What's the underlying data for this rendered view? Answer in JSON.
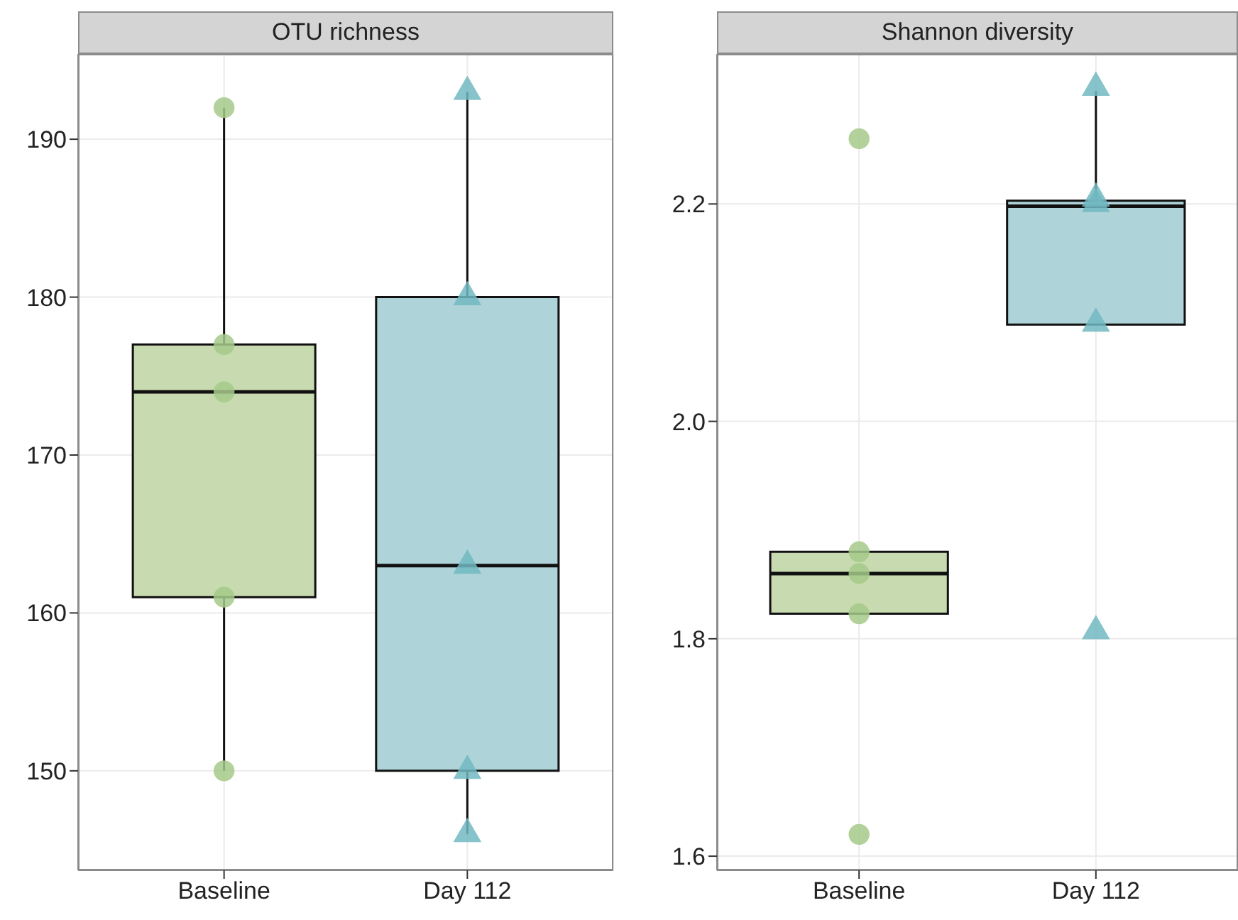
{
  "chart_data": [
    {
      "type": "box",
      "title": "OTU richness",
      "categories": [
        "Baseline",
        "Day 112"
      ],
      "boxes": [
        {
          "low": 150,
          "q1": 161,
          "median": 174,
          "q3": 177,
          "high": 192
        },
        {
          "low": 146,
          "q1": 150,
          "median": 163,
          "q3": 180,
          "high": 193
        }
      ],
      "colors": [
        "#c8dbb0",
        "#aed3d9"
      ],
      "ylim": [
        143.7,
        195.4
      ],
      "yticks": [
        150,
        160,
        170,
        180,
        190
      ],
      "grid": true,
      "series": [
        {
          "type": "scatter",
          "x": [
            "Baseline",
            "Baseline",
            "Baseline",
            "Baseline",
            "Baseline"
          ],
          "values": [
            192,
            177,
            174,
            161,
            150
          ],
          "color": "#a5c98a",
          "marker": "circle"
        },
        {
          "type": "scatter",
          "x": [
            "Day 112",
            "Day 112",
            "Day 112",
            "Day 112",
            "Day 112"
          ],
          "values": [
            193,
            180,
            163,
            150,
            146
          ],
          "color": "#72b8c1",
          "marker": "triangle"
        }
      ]
    },
    {
      "type": "box",
      "title": "Shannon diversity",
      "categories": [
        "Baseline",
        "Day 112"
      ],
      "boxes": [
        {
          "low": 1.823,
          "q1": 1.823,
          "median": 1.86,
          "q3": 1.88,
          "high": 1.88
        },
        {
          "low": 2.089,
          "q1": 2.089,
          "median": 2.198,
          "q3": 2.203,
          "high": 2.304
        }
      ],
      "colors": [
        "#c8dbb0",
        "#aed3d9"
      ],
      "ylim": [
        1.587,
        2.338
      ],
      "yticks": [
        {
          "value": 1.6,
          "label": "1.6"
        },
        {
          "value": 1.8,
          "label": "1.8"
        },
        {
          "value": 2,
          "label": "2.0"
        },
        {
          "value": 2.2,
          "label": "2.2"
        }
      ],
      "grid": true,
      "series": [
        {
          "type": "scatter",
          "x": [
            "Baseline",
            "Baseline",
            "Baseline",
            "Baseline",
            "Baseline"
          ],
          "values": [
            2.26,
            1.88,
            1.86,
            1.823,
            1.62
          ],
          "color": "#a5c98a",
          "marker": "circle"
        },
        {
          "type": "scatter",
          "x": [
            "Day 112",
            "Day 112",
            "Day 112",
            "Day 112",
            "Day 112"
          ],
          "values": [
            2.307,
            2.2,
            2.205,
            2.09,
            1.807
          ],
          "color": "#72b8c1",
          "marker": "triangle"
        }
      ]
    }
  ]
}
